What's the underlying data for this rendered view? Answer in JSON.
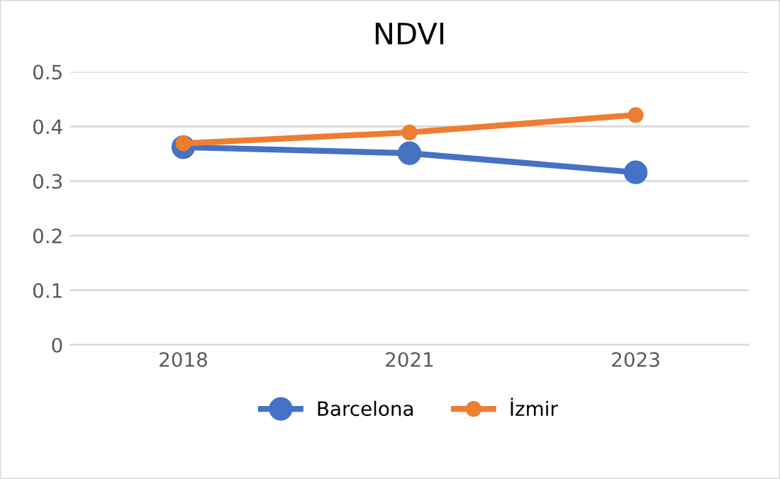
{
  "chart_data": {
    "type": "line",
    "title": "NDVI",
    "categories": [
      "2018",
      "2021",
      "2023"
    ],
    "series": [
      {
        "name": "Barcelona",
        "color": "#4472c4",
        "values": [
          0.362,
          0.351,
          0.316
        ]
      },
      {
        "name": "İzmir",
        "color": "#ed7d31",
        "values": [
          0.369,
          0.389,
          0.421
        ]
      }
    ],
    "ylim": [
      0,
      0.5
    ],
    "yticks": [
      {
        "value": 0,
        "label": "0"
      },
      0.1,
      0.2,
      0.3,
      0.4,
      0.5
    ],
    "grid": "y",
    "legend": "bottom",
    "marker": "circle",
    "line_style": "solid"
  }
}
